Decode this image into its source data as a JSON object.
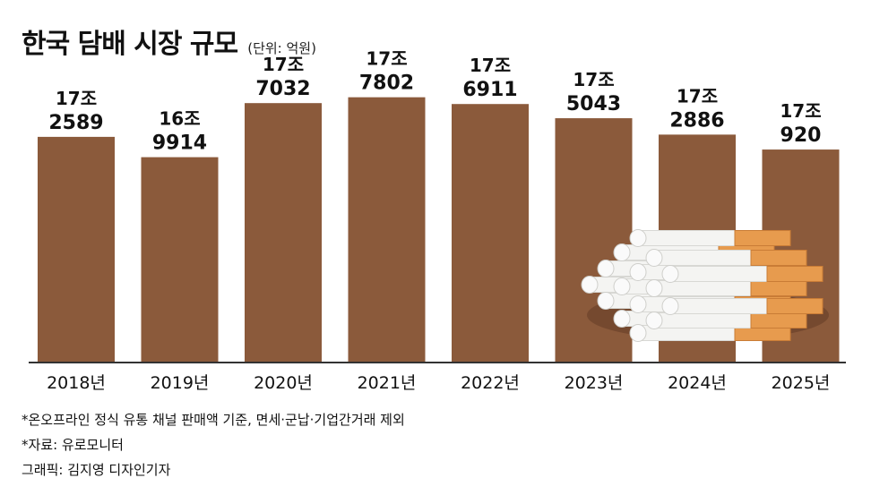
{
  "title": "한국 담배 시장 규모",
  "unit": "(단위: 억원)",
  "notes": {
    "footnote": "*온오프라인 정식 유통 채널 판매액 기준, 면세·군납·기업간거래 제외",
    "source": "*자료: 유로모니터",
    "credit": "그래픽: 김지영 디자인기자"
  },
  "colors": {
    "bar": "#8b5a3b",
    "axis": "#333333"
  },
  "chart_data": {
    "type": "bar",
    "categories": [
      "2018년",
      "2019년",
      "2020년",
      "2021년",
      "2022년",
      "2023년",
      "2024년",
      "2025년"
    ],
    "values": [
      172589,
      169914,
      177032,
      177802,
      176911,
      175043,
      172886,
      170920
    ],
    "data_labels": [
      [
        "17조",
        "2589"
      ],
      [
        "16조",
        "9914"
      ],
      [
        "17조",
        "7032"
      ],
      [
        "17조",
        "7802"
      ],
      [
        "17조",
        "6911"
      ],
      [
        "17조",
        "5043"
      ],
      [
        "17조",
        "2886"
      ],
      [
        "17조",
        "920"
      ]
    ],
    "ylim": [
      143000,
      180000
    ],
    "grid": false,
    "illustration": "cigarettes"
  }
}
